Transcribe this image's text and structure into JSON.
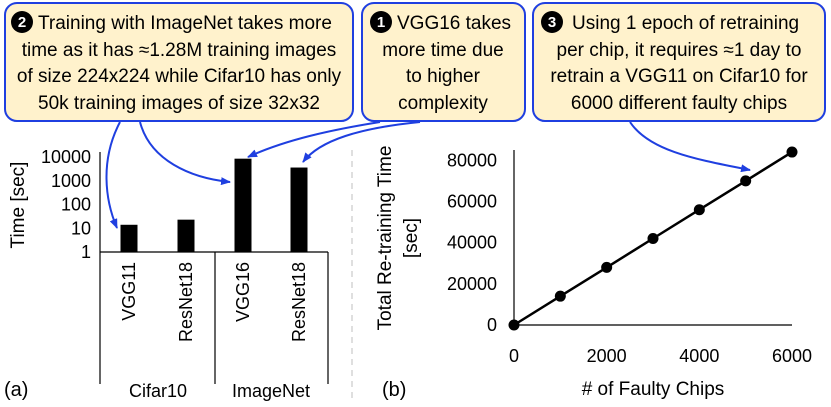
{
  "callouts": [
    {
      "num": "2",
      "lines": [
        "Training with ImageNet takes more",
        "time as it has ≈1.28M training images",
        "of size 224x224 while Cifar10 has only",
        "50k training images of size 32x32"
      ]
    },
    {
      "num": "1",
      "lines": [
        "VGG16 takes",
        "more time due",
        "to higher",
        "complexity"
      ]
    },
    {
      "num": "3",
      "lines": [
        "Using 1 epoch of retraining",
        "per chip, it requires ≈1 day to",
        "retrain a VGG11 on Cifar10 for",
        "6000 different faulty chips"
      ]
    }
  ],
  "panel_a_label": "(a)",
  "panel_b_label": "(b)",
  "chart_data": [
    {
      "type": "bar",
      "ylabel": "Time [sec]",
      "yscale": "log",
      "ylim": [
        1,
        10000
      ],
      "yticks": [
        "1",
        "10",
        "100",
        "1000",
        "10000"
      ],
      "categories": [
        "VGG11",
        "ResNet18",
        "VGG16",
        "ResNet18"
      ],
      "groups": [
        {
          "name": "Cifar10",
          "categories": [
            "VGG11",
            "ResNet18"
          ]
        },
        {
          "name": "ImageNet",
          "categories": [
            "VGG16",
            "ResNet18"
          ]
        }
      ],
      "values": [
        14,
        23,
        8500,
        3600
      ],
      "colors": {
        "bar": "#000000"
      }
    },
    {
      "type": "line",
      "xlabel": "# of Faulty Chips",
      "ylabel": [
        "Total Re-training Time",
        "[sec]"
      ],
      "xlim": [
        0,
        6000
      ],
      "ylim": [
        0,
        85000
      ],
      "xticks": [
        0,
        2000,
        4000,
        6000
      ],
      "yticks": [
        0,
        20000,
        40000,
        60000,
        80000
      ],
      "x": [
        0,
        1000,
        2000,
        3000,
        4000,
        5000,
        6000
      ],
      "y": [
        0,
        14000,
        28000,
        42000,
        56000,
        70000,
        84000
      ],
      "colors": {
        "line": "#000000"
      }
    }
  ],
  "colors": {
    "callout_fill": "#FFF2CC",
    "callout_border": "#1F3FE0",
    "arrow": "#1F3FE0"
  }
}
